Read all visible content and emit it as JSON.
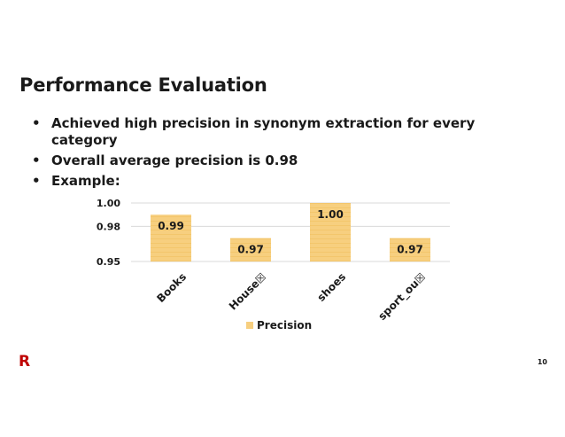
{
  "slide": {
    "title": "Performance Evaluation",
    "bullets": [
      "Achieved high precision in synonym extraction for every category",
      "Overall average precision is 0.98",
      "Example:"
    ],
    "bullet_glyph": "•",
    "logo_text": "R",
    "page_number": "10"
  },
  "colors": {
    "bar": "#f7cf7f",
    "bar_stripe": "#eebb55",
    "gridline": "#d9d9d9",
    "logo": "#bf0000"
  },
  "chart_data": {
    "type": "bar",
    "categories": [
      "Books",
      "House☒",
      "shoes",
      "sport_ou☒"
    ],
    "series": [
      {
        "name": "Precision",
        "values": [
          0.99,
          0.97,
          1.0,
          0.97
        ]
      }
    ],
    "data_labels": [
      "0.99",
      "0.97",
      "1.00",
      "0.97"
    ],
    "y_ticks": [
      0.95,
      0.98,
      1.0
    ],
    "y_tick_labels": [
      "0.95",
      "0.98",
      "1.00"
    ],
    "ylim": [
      0.95,
      1.0
    ],
    "title": "",
    "xlabel": "",
    "ylabel": "",
    "grid": true,
    "legend": "bottom"
  }
}
